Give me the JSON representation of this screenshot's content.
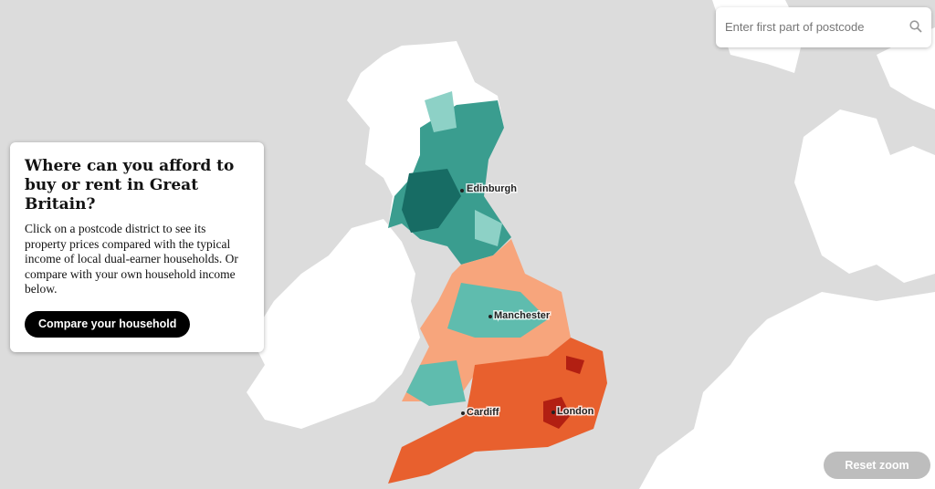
{
  "search": {
    "placeholder": "Enter first part of postcode"
  },
  "panel": {
    "title": "Where can you afford to buy or rent in Great Britain?",
    "description": "Click on a postcode district to see its property prices compared with the typical income of local dual-earner households. Or compare with your own household income below.",
    "button": "Compare your household"
  },
  "map": {
    "labels": [
      "Edinburgh",
      "Manchester",
      "Cardiff",
      "London"
    ]
  },
  "controls": {
    "reset": "Reset zoom"
  }
}
